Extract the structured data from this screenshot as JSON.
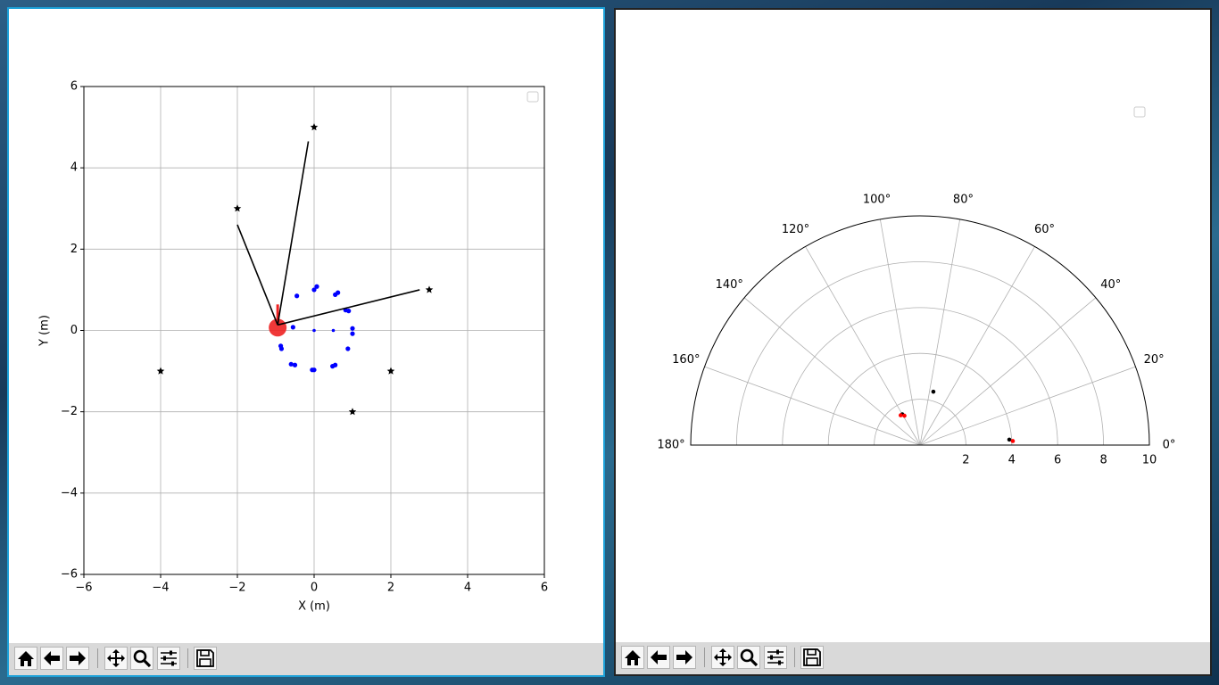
{
  "left_plot": {
    "xlabel": "X (m)",
    "ylabel": "Y (m)",
    "xlim": [
      -6,
      6
    ],
    "ylim": [
      -6,
      6
    ],
    "xticks": [
      -6,
      -4,
      -2,
      0,
      2,
      4,
      6
    ],
    "yticks": [
      -6,
      -4,
      -2,
      0,
      2,
      4,
      6
    ],
    "xtick_labels": [
      "−6",
      "−4",
      "−2",
      "0",
      "2",
      "4",
      "6"
    ],
    "ytick_labels": [
      "−6",
      "−4",
      "−2",
      "0",
      "2",
      "4",
      "6"
    ],
    "grid": true,
    "legend": "top-right (empty)"
  },
  "right_plot": {
    "angle_labels": [
      "0°",
      "20°",
      "40°",
      "60°",
      "80°",
      "100°",
      "120°",
      "140°",
      "160°",
      "180°"
    ],
    "radial_labels": [
      "2",
      "4",
      "6",
      "8",
      "10"
    ],
    "rmax": 10,
    "legend": "top-right (empty)"
  },
  "chart_data": [
    {
      "type": "scatter",
      "xlim": [
        -6,
        6
      ],
      "ylim": [
        -6,
        6
      ],
      "xlabel": "X (m)",
      "ylabel": "Y (m)",
      "grid": true,
      "landmarks": {
        "marker": "star",
        "color": "#000000",
        "x": [
          0,
          -2,
          3,
          -4,
          2,
          1
        ],
        "y": [
          5,
          3,
          1,
          -1,
          -1,
          -2
        ]
      },
      "path_points": {
        "color": "#0000ff",
        "x": [
          0.0,
          0.07,
          0.55,
          0.62,
          0.82,
          0.9,
          1.0,
          1.0,
          0.88,
          0.55,
          0.48,
          0.0,
          -0.05,
          -0.5,
          -0.6,
          -0.85,
          -0.87,
          -0.55,
          -0.45,
          0.0,
          0.5
        ],
        "y": [
          1.0,
          1.08,
          0.88,
          0.93,
          0.5,
          0.48,
          0.05,
          -0.08,
          -0.45,
          -0.85,
          -0.88,
          -0.97,
          -0.97,
          -0.85,
          -0.83,
          -0.45,
          -0.38,
          0.08,
          0.85,
          0.0,
          0.0
        ]
      },
      "robot": {
        "x": -0.95,
        "y": 0.07,
        "color": "#ee2222"
      },
      "rays_to": [
        [
          -0.15,
          4.65
        ],
        [
          -2.0,
          2.6
        ],
        [
          2.75,
          1.0
        ]
      ]
    },
    {
      "type": "polar-scatter",
      "theta_range": [
        0,
        180
      ],
      "rmax": 10,
      "points": [
        {
          "r": 3.9,
          "theta": 3.5,
          "color": "#000000"
        },
        {
          "r": 4.05,
          "theta": 2.5,
          "color": "#ff0000"
        },
        {
          "r": 1.55,
          "theta": 120,
          "color": "#000000"
        },
        {
          "r": 1.55,
          "theta": 123,
          "color": "#ff0000"
        },
        {
          "r": 1.45,
          "theta": 118,
          "color": "#ff0000"
        },
        {
          "r": 2.4,
          "theta": 76,
          "color": "#000000"
        }
      ]
    }
  ],
  "toolbar_icons": [
    "home-icon",
    "back-icon",
    "forward-icon",
    "pan-icon",
    "zoom-icon",
    "configure-icon",
    "save-icon"
  ]
}
